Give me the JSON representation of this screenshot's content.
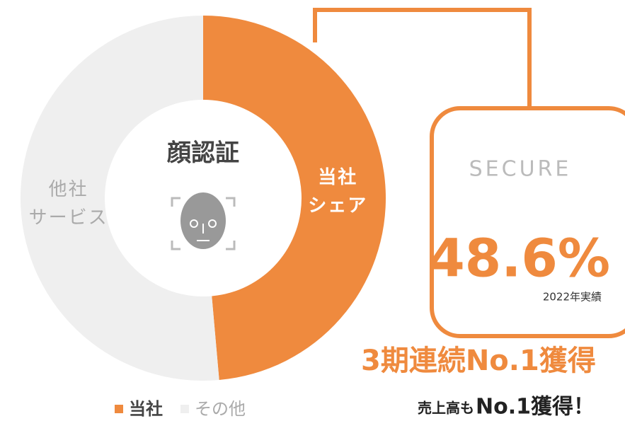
{
  "chart_data": {
    "type": "donut",
    "categories": [
      "当社",
      "その他"
    ],
    "values": [
      48.6,
      51.4
    ],
    "value_labels": [
      "48.6%",
      null
    ],
    "colors": [
      "#ef8a3e",
      "#efefef"
    ],
    "slice_labels": [
      [
        "当社",
        "シェア"
      ],
      [
        "他社",
        "サービス"
      ]
    ],
    "center_label": "顔認証",
    "logo": "SECURE",
    "note": "2022年実績",
    "headline": "3期連続No.1獲得",
    "subline_small": "売上高も",
    "subline_big": "No.1獲得！"
  }
}
